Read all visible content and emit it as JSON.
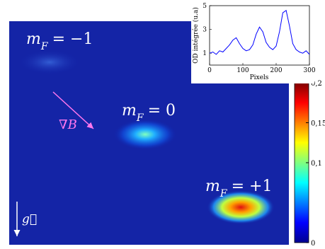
{
  "chart_data": [
    {
      "type": "image",
      "labels": [
        {
          "symbol": "m",
          "subscript": "F",
          "rest": "= −1"
        },
        {
          "symbol": "m",
          "subscript": "F",
          "rest": "= 0"
        },
        {
          "symbol": "m",
          "subscript": "F",
          "rest": "= +1"
        }
      ],
      "gradient_label": "∇B",
      "gravity_label": "g⃗",
      "clim": [
        0,
        0.2
      ],
      "cticks": [
        {
          "value": 0,
          "label": "0"
        },
        {
          "value": 0.1,
          "label": "0,1"
        },
        {
          "value": 0.15,
          "label": "0,15"
        },
        {
          "value": 0.2,
          "label": "0,2"
        }
      ]
    },
    {
      "type": "line",
      "xlabel": "Pixels",
      "ylabel": "OD intégrée (u.a)",
      "x": [
        0,
        10,
        20,
        30,
        40,
        50,
        60,
        70,
        80,
        90,
        100,
        110,
        120,
        130,
        140,
        150,
        160,
        170,
        180,
        190,
        200,
        210,
        220,
        230,
        240,
        250,
        260,
        270,
        280,
        290,
        300
      ],
      "series": [
        {
          "color": "#0000ff",
          "values": [
            1.0,
            1.1,
            0.9,
            1.2,
            1.1,
            1.4,
            1.7,
            2.1,
            2.3,
            1.8,
            1.4,
            1.2,
            1.3,
            1.7,
            2.6,
            3.2,
            2.8,
            1.9,
            1.5,
            1.3,
            1.6,
            2.8,
            4.4,
            4.6,
            3.3,
            1.8,
            1.3,
            1.1,
            1.0,
            1.2,
            0.9
          ]
        }
      ],
      "xlim": [
        0,
        300
      ],
      "ylim": [
        0,
        5
      ],
      "xticks": [
        0,
        100,
        200,
        300
      ],
      "yticks": [
        1,
        3,
        5
      ]
    }
  ]
}
